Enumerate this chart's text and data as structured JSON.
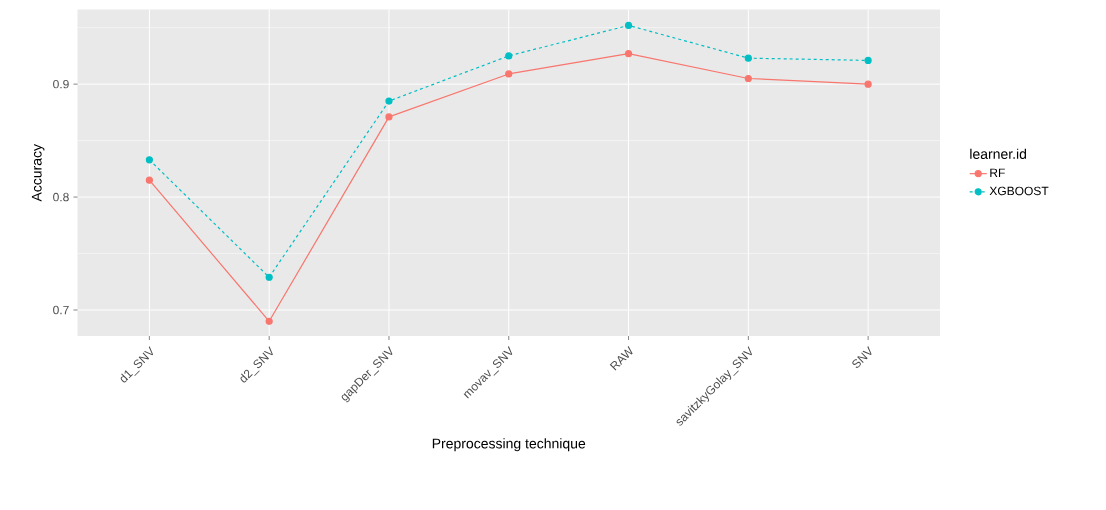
{
  "chart_data": {
    "type": "line",
    "xlabel": "Preprocessing technique",
    "ylabel": "Accuracy",
    "legend_title": "learner.id",
    "categories": [
      "d1_SNV",
      "d2_SNV",
      "gapDer_SNV",
      "movav_SNV",
      "RAW",
      "savitzkyGolay_SNV",
      "SNV"
    ],
    "series": [
      {
        "name": "RF",
        "color": "#f8766d",
        "line_style": "solid",
        "values": [
          0.815,
          0.69,
          0.871,
          0.909,
          0.927,
          0.905,
          0.9
        ]
      },
      {
        "name": "XGBOOST",
        "color": "#00bfc4",
        "line_style": "dashed",
        "values": [
          0.833,
          0.729,
          0.885,
          0.925,
          0.952,
          0.923,
          0.921
        ]
      }
    ],
    "ylim": [
      0.677,
      0.966
    ],
    "yticks": [
      0.7,
      0.8,
      0.9
    ],
    "grid": true,
    "legend": "right",
    "marker": "circle"
  }
}
